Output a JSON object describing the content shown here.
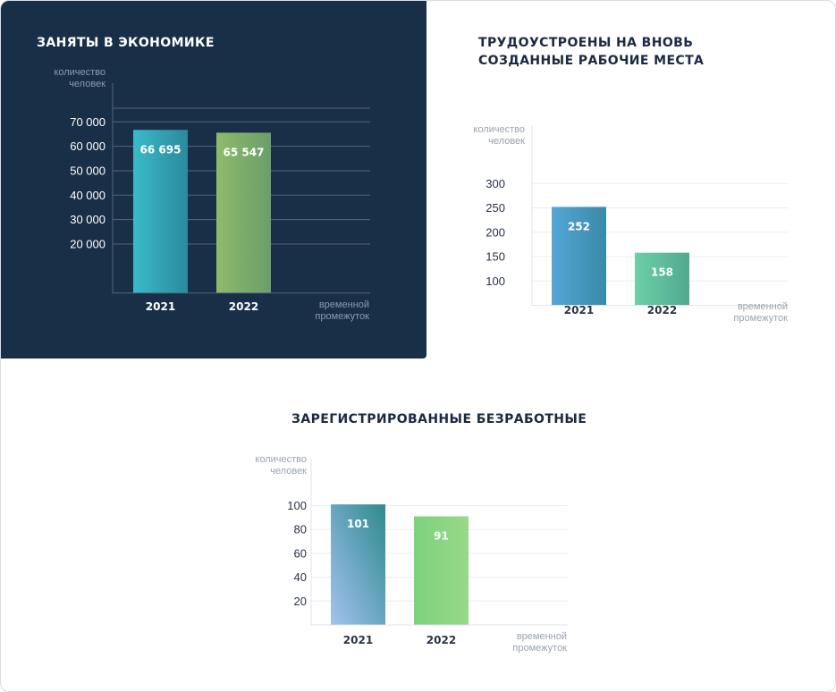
{
  "charts": [
    {
      "title": "ЗАНЯТЫ В ЭКОНОМИКЕ"
    },
    {
      "title": "ТРУДОУСТРОЕНЫ НА ВНОВЬ\nСОЗДАННЫЕ РАБОЧИЕ МЕСТА"
    },
    {
      "title": "ЗАРЕГИСТРИРОВАННЫЕ БЕЗРАБОТНЫЕ"
    }
  ],
  "chart_data": [
    {
      "type": "bar",
      "title": "ЗАНЯТЫ В ЭКОНОМИКЕ",
      "ylabel": [
        "количество",
        "человек"
      ],
      "xlabel": [
        "временной",
        "промежуток"
      ],
      "categories": [
        "2021",
        "2022"
      ],
      "values": [
        66695,
        65547
      ],
      "value_labels": [
        "66 695",
        "65 547"
      ],
      "yticks": [
        20000,
        30000,
        40000,
        50000,
        60000,
        70000
      ],
      "ytick_labels": [
        "20 000",
        "30 000",
        "40 000",
        "50 000",
        "60 000",
        "70 000"
      ],
      "ylim": [
        0,
        80000
      ],
      "grid": true,
      "theme": "dark",
      "colors": {
        "bar_2021": [
          "#3bbac9",
          "#2a8a9c"
        ],
        "bar_2022": [
          "#8fba6a",
          "#6a9f6b"
        ],
        "background": "#192f48"
      }
    },
    {
      "type": "bar",
      "title": "ТРУДОУСТРОЕНЫ НА ВНОВЬ СОЗДАННЫЕ РАБОЧИЕ МЕСТА",
      "ylabel": [
        "количество",
        "человек"
      ],
      "xlabel": [
        "временной",
        "промежуток"
      ],
      "categories": [
        "2021",
        "2022"
      ],
      "values": [
        252,
        158
      ],
      "value_labels": [
        "252",
        "158"
      ],
      "yticks": [
        100,
        150,
        200,
        250,
        300
      ],
      "ytick_labels": [
        "100",
        "150",
        "200",
        "250",
        "300"
      ],
      "ylim": [
        50,
        300
      ],
      "grid": true,
      "theme": "light",
      "colors": {
        "bar_2021": [
          "#55a6d6",
          "#3a8aa8"
        ],
        "bar_2022": [
          "#6cd0a8",
          "#52a990"
        ]
      }
    },
    {
      "type": "bar",
      "title": "ЗАРЕГИСТРИРОВАННЫЕ БЕЗРАБОТНЫЕ",
      "ylabel": [
        "количество",
        "человек"
      ],
      "xlabel": [
        "временной",
        "промежуток"
      ],
      "categories": [
        "2021",
        "2022"
      ],
      "values": [
        101,
        91
      ],
      "value_labels": [
        "101",
        "91"
      ],
      "yticks": [
        20,
        40,
        60,
        80,
        100
      ],
      "ytick_labels": [
        "20",
        "40",
        "60",
        "80",
        "100"
      ],
      "ylim": [
        0,
        100
      ],
      "grid": true,
      "theme": "light",
      "colors": {
        "bar_2021": [
          "#a4c2f0",
          "#2e8a8e"
        ],
        "bar_2022": [
          "#7dd27e",
          "#98d887"
        ]
      }
    }
  ]
}
